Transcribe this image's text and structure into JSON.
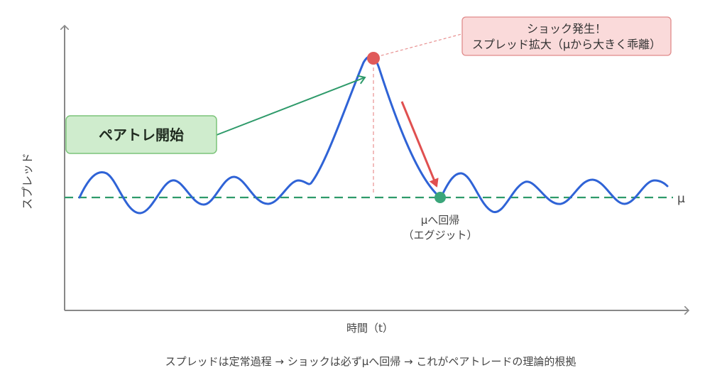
{
  "labels": {
    "y_axis": "スプレッド",
    "x_axis": "時間（t）",
    "mu": "μ",
    "start_box": "ペアトレ開始",
    "shock_line1": "ショック発生！",
    "shock_line2": "スプレッド拡大（μから大きく乖離）",
    "revert_line1": "μへ回帰",
    "revert_line2": "（エグジット）",
    "caption": "スプレッドは定常過程 → ショックは必ずμへ回帰 → これがペアトレードの理論的根拠"
  },
  "colors": {
    "axis": "#888888",
    "curve": "#2f63d6",
    "mean_line": "#2e9a6a",
    "shock_point": "#e05a5a",
    "revert_point": "#3aa57a",
    "start_box_fill": "#cfeccd",
    "start_box_stroke": "#7cc47a",
    "shock_box_fill": "#fadada",
    "shock_box_stroke": "#e08b8b",
    "start_arrow": "#2e9a6a",
    "revert_arrow": "#e05050"
  }
}
